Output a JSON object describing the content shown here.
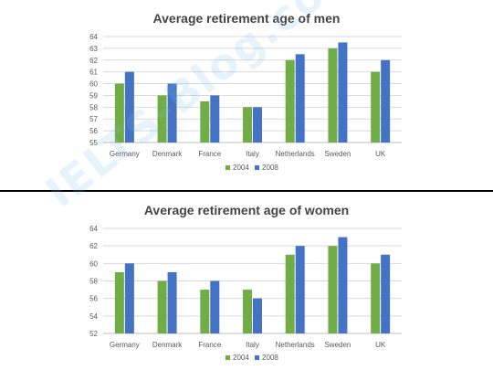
{
  "watermark": "IELTS-Blog.com",
  "colors": {
    "series_2004": "#70ad47",
    "series_2008": "#4472c4",
    "grid": "#d9d9d9",
    "axis": "#bfbfbf",
    "tick_text": "#595959"
  },
  "chart_data": [
    {
      "type": "bar",
      "title": "Average retirement age of men",
      "xlabel": "",
      "ylabel": "",
      "categories": [
        "Germany",
        "Denmark",
        "France",
        "Italy",
        "Netherlands",
        "Sweden",
        "UK"
      ],
      "series": [
        {
          "name": "2004",
          "values": [
            60,
            59,
            58.5,
            58,
            62,
            63,
            61
          ]
        },
        {
          "name": "2008",
          "values": [
            61,
            60,
            59,
            58,
            62.5,
            63.5,
            62
          ]
        }
      ],
      "ylim": [
        55,
        64
      ],
      "yticks": [
        "55",
        "56",
        "57",
        "58",
        "59",
        "60",
        "61",
        "62",
        "63",
        "64"
      ],
      "grid": true,
      "legend": "bottom-center"
    },
    {
      "type": "bar",
      "title": "Average retirement age of women",
      "xlabel": "",
      "ylabel": "",
      "categories": [
        "Germany",
        "Denmark",
        "France",
        "Italy",
        "Netherlands",
        "Sweden",
        "UK"
      ],
      "series": [
        {
          "name": "2004",
          "values": [
            59,
            58,
            57,
            57,
            61,
            62,
            60
          ]
        },
        {
          "name": "2008",
          "values": [
            60,
            59,
            58,
            56,
            62,
            63,
            61
          ]
        }
      ],
      "ylim": [
        52,
        64
      ],
      "yticks": [
        "52",
        "54",
        "56",
        "58",
        "60",
        "62",
        "64"
      ],
      "grid": true,
      "legend": "bottom-center"
    }
  ]
}
